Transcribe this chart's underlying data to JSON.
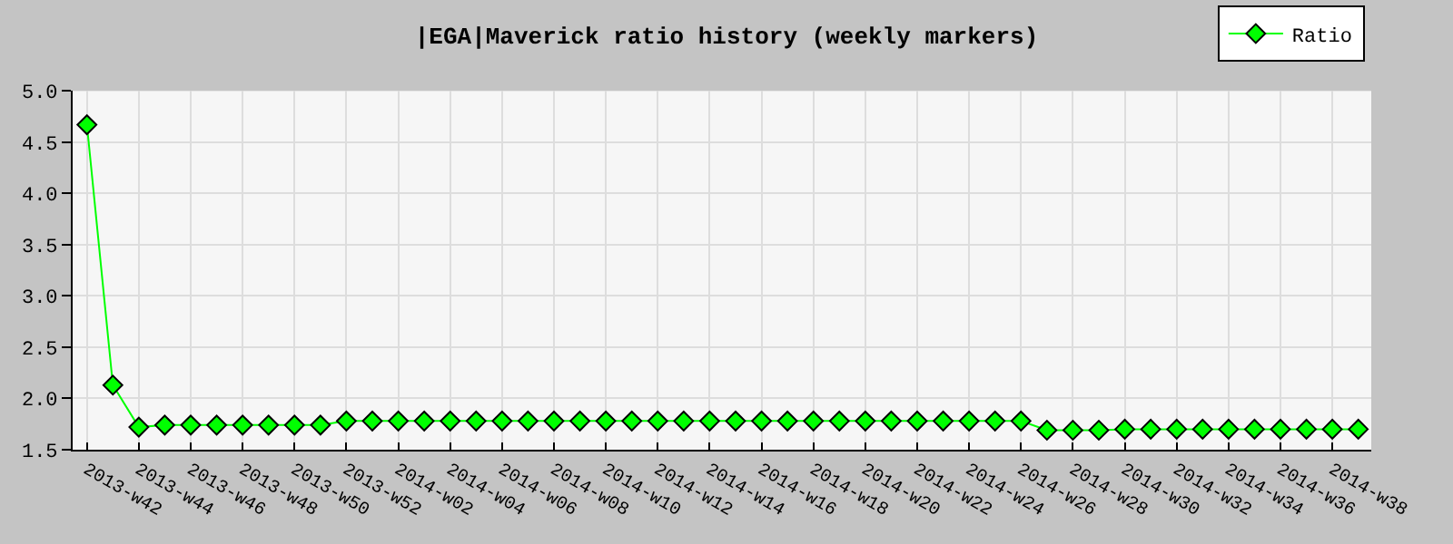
{
  "chart_data": {
    "type": "line",
    "title": "|EGA|Maverick ratio history (weekly markers)",
    "categories": [
      "2013-w42",
      null,
      "2013-w44",
      null,
      "2013-w46",
      null,
      "2013-w48",
      null,
      "2013-w50",
      null,
      "2013-w52",
      null,
      "2014-w02",
      null,
      "2014-w04",
      null,
      "2014-w06",
      null,
      "2014-w08",
      null,
      "2014-w10",
      null,
      "2014-w12",
      null,
      "2014-w14",
      null,
      "2014-w16",
      null,
      "2014-w18",
      null,
      "2014-w20",
      null,
      "2014-w22",
      null,
      "2014-w24",
      null,
      "2014-w26",
      null,
      "2014-w28",
      null,
      "2014-w30",
      null,
      "2014-w32",
      null,
      "2014-w34",
      null,
      "2014-w36",
      null,
      "2014-w38",
      null
    ],
    "series": [
      {
        "name": "Ratio",
        "color": "#00ff00",
        "values": [
          4.67,
          2.13,
          1.72,
          1.74,
          1.74,
          1.74,
          1.74,
          1.74,
          1.74,
          1.74,
          1.78,
          1.78,
          1.78,
          1.78,
          1.78,
          1.78,
          1.78,
          1.78,
          1.78,
          1.78,
          1.78,
          1.78,
          1.78,
          1.78,
          1.78,
          1.78,
          1.78,
          1.78,
          1.78,
          1.78,
          1.78,
          1.78,
          1.78,
          1.78,
          1.78,
          1.78,
          1.78,
          1.69,
          1.69,
          1.69,
          1.7,
          1.7,
          1.7,
          1.7,
          1.7,
          1.7,
          1.7,
          1.7,
          1.7,
          1.7
        ]
      }
    ],
    "ylim": [
      1.5,
      5.0
    ],
    "yticks": [
      1.5,
      {
        "value": 2,
        "label": "2.0"
      },
      2.5,
      {
        "value": 3,
        "label": "3.0"
      },
      3.5,
      {
        "value": 4,
        "label": "4.0"
      },
      4.5,
      {
        "value": 5,
        "label": "5.0"
      }
    ],
    "grid": true,
    "legend": "top right",
    "marker": "diamond",
    "line_style": "solid"
  }
}
